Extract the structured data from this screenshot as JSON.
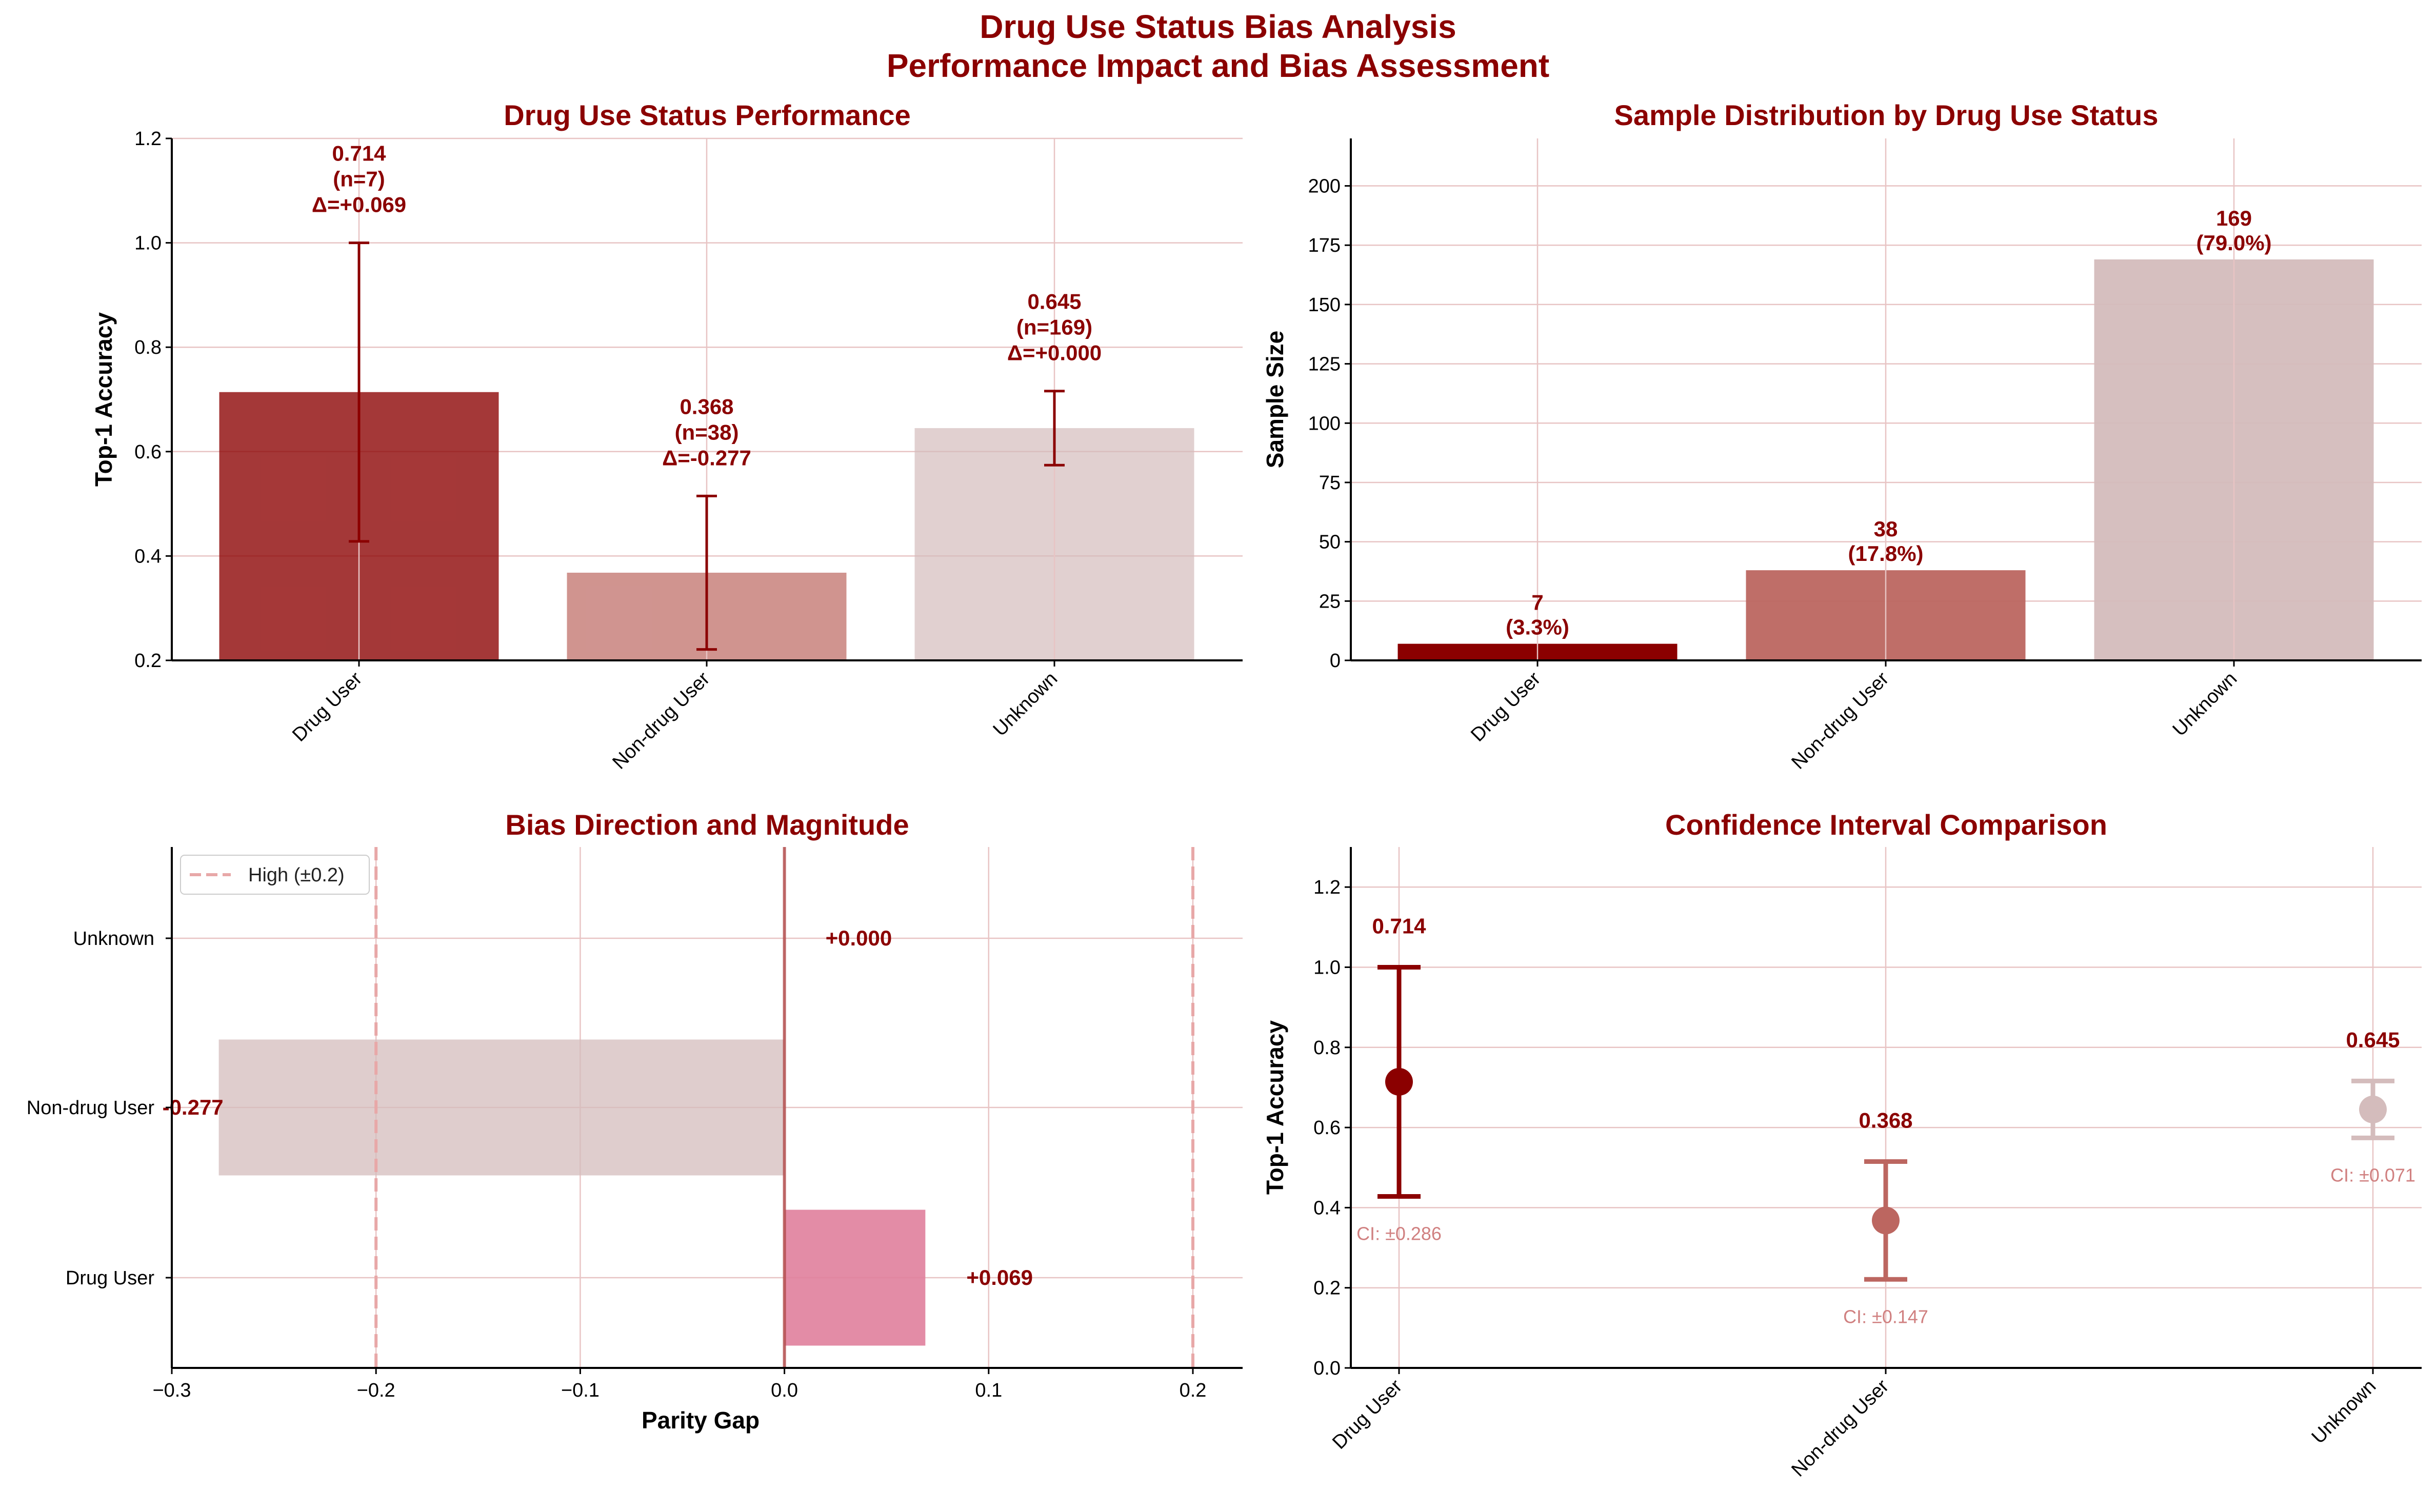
{
  "figure": {
    "title_line1": "Drug Use Status Bias Analysis",
    "title_line2": "Performance Impact and Bias Assessment"
  },
  "colors": {
    "title": "#8b0000",
    "drug_user": "#8b0000",
    "non_drug_user": "#bc6660",
    "unknown": "#d4bcbc",
    "positive_gap": "#e0809c",
    "threshold": "#e8a8a8"
  },
  "chart_data": [
    {
      "id": "performance",
      "type": "bar",
      "title": "Drug Use Status Performance",
      "xlabel": "",
      "ylabel": "Top-1 Accuracy",
      "categories": [
        "Drug User",
        "Non-drug User",
        "Unknown"
      ],
      "values": [
        0.714,
        0.368,
        0.645
      ],
      "error_low": [
        0.428,
        0.221,
        0.574
      ],
      "error_high": [
        1.0,
        0.515,
        0.716
      ],
      "labels": [
        [
          "0.714",
          "(n=7)",
          "Δ=+0.069"
        ],
        [
          "0.368",
          "(n=38)",
          "Δ=-0.277"
        ],
        [
          "0.645",
          "(n=169)",
          "Δ=+0.000"
        ]
      ],
      "ylim": [
        0.2,
        1.2
      ],
      "yticks": [
        "0.2",
        "0.4",
        "0.6",
        "0.8",
        "1.0",
        "1.2"
      ],
      "grid": true
    },
    {
      "id": "distribution",
      "type": "bar",
      "title": "Sample Distribution by Drug Use Status",
      "xlabel": "",
      "ylabel": "Sample Size",
      "categories": [
        "Drug User",
        "Non-drug User",
        "Unknown"
      ],
      "values": [
        7,
        38,
        169
      ],
      "labels": [
        [
          "7",
          "(3.3%)"
        ],
        [
          "38",
          "(17.8%)"
        ],
        [
          "169",
          "(79.0%)"
        ]
      ],
      "ylim": [
        0,
        220
      ],
      "yticks": [
        "0",
        "25",
        "50",
        "75",
        "100",
        "125",
        "150",
        "175",
        "200"
      ],
      "grid": true
    },
    {
      "id": "bias",
      "type": "bar",
      "orientation": "horizontal",
      "title": "Bias Direction and Magnitude",
      "xlabel": "Parity Gap",
      "ylabel": "",
      "categories": [
        "Drug User",
        "Non-drug User",
        "Unknown"
      ],
      "values": [
        0.069,
        -0.277,
        0.0
      ],
      "labels": [
        "+0.069",
        "-0.277",
        "+0.000"
      ],
      "xlim": [
        -0.3,
        0.225
      ],
      "xticks": [
        "−0.3",
        "−0.2",
        "−0.1",
        "0.0",
        "0.1",
        "0.2"
      ],
      "thresholds": [
        -0.2,
        0.2
      ],
      "legend": {
        "entries": [
          "High (±0.2)"
        ],
        "placement": "upper-left"
      },
      "grid": true
    },
    {
      "id": "ci",
      "type": "scatter",
      "title": "Confidence Interval Comparison",
      "xlabel": "",
      "ylabel": "Top-1 Accuracy",
      "categories": [
        "Drug User",
        "Non-drug User",
        "Unknown"
      ],
      "values": [
        0.714,
        0.368,
        0.645
      ],
      "error_low": [
        0.428,
        0.221,
        0.574
      ],
      "error_high": [
        1.0,
        0.515,
        0.716
      ],
      "value_labels": [
        "0.714",
        "0.368",
        "0.645"
      ],
      "ci_labels": [
        "CI: ±0.286",
        "CI: ±0.147",
        "CI: ±0.071"
      ],
      "ylim": [
        0.0,
        1.3
      ],
      "yticks": [
        "0.0",
        "0.2",
        "0.4",
        "0.6",
        "0.8",
        "1.0",
        "1.2"
      ],
      "grid": true
    }
  ]
}
